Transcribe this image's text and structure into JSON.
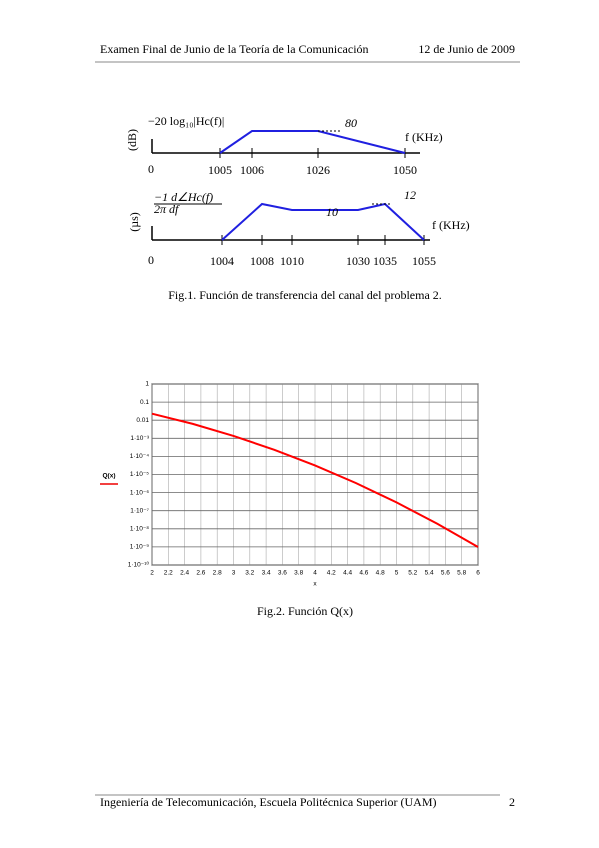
{
  "header": {
    "title": "Examen Final de Junio de la Teoría de la Comunicación",
    "date": "12 de Junio de 2009"
  },
  "figure1": {
    "top": {
      "expression": "−20 log₁₀|Hc(f)|",
      "unit": "(dB)",
      "axis_label": "f (KHz)",
      "origin": "0",
      "x": [
        1005,
        1006,
        1026,
        1050
      ],
      "y": [
        0,
        80,
        80,
        0
      ]
    },
    "bottom": {
      "expression_numerator": "−1  d∠Hc(f)",
      "expression_denominator": "2π      df",
      "unit": "(µs)",
      "axis_label": "f (KHz)",
      "origin": "0",
      "x": [
        1004,
        1008,
        1010,
        1030,
        1035,
        1055
      ],
      "y": [
        0,
        12,
        10,
        10,
        12,
        0
      ]
    },
    "caption": "Fig.1. Función de transferencia del canal del problema 2."
  },
  "chart_data": {
    "type": "line",
    "x_label": "x",
    "y_label": "Q(x)",
    "log_y": true,
    "grid": true,
    "xlim": [
      2,
      6
    ],
    "ylim": [
      1e-10,
      1
    ],
    "xticks": [
      2,
      2.2,
      2.4,
      2.6,
      2.8,
      3,
      3.2,
      3.4,
      3.6,
      3.8,
      4,
      4.2,
      4.4,
      4.6,
      4.8,
      5,
      5.2,
      5.4,
      5.6,
      5.8,
      6
    ],
    "yticks": [
      {
        "value": 1e-10,
        "label": "1·10⁻¹⁰"
      },
      {
        "value": 1e-09,
        "label": "1·10⁻⁹"
      },
      {
        "value": 1e-08,
        "label": "1·10⁻⁸"
      },
      {
        "value": 1e-07,
        "label": "1·10⁻⁷"
      },
      {
        "value": 1e-06,
        "label": "1·10⁻⁶"
      },
      {
        "value": 1e-05,
        "label": "1·10⁻⁵"
      },
      {
        "value": 0.0001,
        "label": "1·10⁻⁴"
      },
      {
        "value": 0.001,
        "label": "1·10⁻³"
      },
      0.01,
      0.1,
      1
    ],
    "x": [
      2,
      2.5,
      3,
      3.5,
      4,
      4.5,
      5,
      5.5,
      6
    ],
    "series": [
      {
        "name": "Q(x)",
        "color": "#ff0000",
        "values": [
          0.02275,
          0.00621,
          0.00135,
          0.000233,
          3.17e-05,
          3.4e-06,
          2.87e-07,
          1.9e-08,
          9.87e-10
        ]
      }
    ],
    "caption": "Fig.2. Función Q(x)"
  },
  "footer": {
    "text": "Ingeniería de Telecomunicación, Escuela Politécnica Superior (UAM)",
    "page": "2"
  }
}
